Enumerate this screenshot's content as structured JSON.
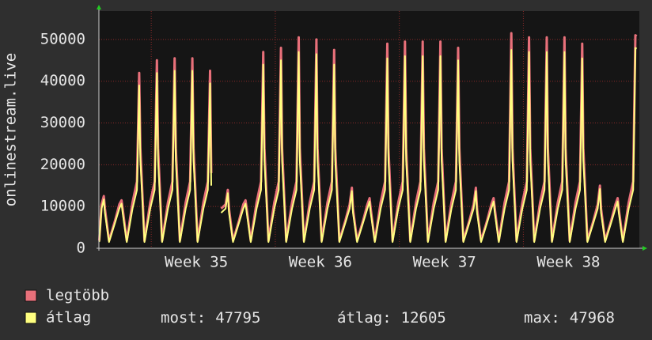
{
  "chart_data": {
    "type": "line",
    "ylabel": "onlinestream.live",
    "xlim": [
      0.6,
      31.1
    ],
    "xticks": [
      {
        "value": 6.1,
        "label": "Week 35"
      },
      {
        "value": 13.1,
        "label": "Week 36"
      },
      {
        "value": 20.1,
        "label": "Week 37"
      },
      {
        "value": 27.1,
        "label": "Week 38"
      }
    ],
    "ylim": [
      0,
      56800
    ],
    "yticks": [
      0,
      10000,
      20000,
      30000,
      40000,
      50000
    ],
    "grid": true,
    "x": [
      0.62,
      0.75,
      0.875,
      0.94,
      1.17,
      1.5,
      1.75,
      1.875,
      1.94,
      2.17,
      2.5,
      2.75,
      2.875,
      2.94,
      3.17,
      3.5,
      3.75,
      3.875,
      3.94,
      4.17,
      4.5,
      4.75,
      4.875,
      4.94,
      5.17,
      5.5,
      5.75,
      5.875,
      5.94,
      6.17,
      6.5,
      6.75,
      6.875,
      6.94,
      7.17,
      7.5,
      7.75,
      7.875,
      7.94,
      8.17,
      8.5,
      8.75,
      8.875,
      8.94,
      9.17,
      9.5,
      9.75,
      9.875,
      9.94,
      10.17,
      10.5,
      10.75,
      10.875,
      10.94,
      11.17,
      11.5,
      11.75,
      11.875,
      11.94,
      12.17,
      12.5,
      12.75,
      12.875,
      12.94,
      13.17,
      13.5,
      13.75,
      13.875,
      13.94,
      14.17,
      14.5,
      14.75,
      14.875,
      14.94,
      15.17,
      15.5,
      15.75,
      15.875,
      15.94,
      16.17,
      16.5,
      16.75,
      16.875,
      16.94,
      17.17,
      17.5,
      17.75,
      17.875,
      17.94,
      18.17,
      18.5,
      18.75,
      18.875,
      18.94,
      19.17,
      19.5,
      19.75,
      19.875,
      19.94,
      20.17,
      20.5,
      20.75,
      20.875,
      20.94,
      21.17,
      21.5,
      21.75,
      21.875,
      21.94,
      22.17,
      22.5,
      22.75,
      22.875,
      22.94,
      23.17,
      23.5,
      23.75,
      23.875,
      23.94,
      24.17,
      24.5,
      24.75,
      24.875,
      24.94,
      25.17,
      25.5,
      25.75,
      25.875,
      25.94,
      26.17,
      26.5,
      26.75,
      26.875,
      26.94,
      27.17,
      27.5,
      27.75,
      27.875,
      27.94,
      28.17,
      28.5,
      28.75,
      28.875,
      28.94,
      29.17,
      29.5,
      29.75,
      29.875,
      29.94,
      30.17,
      30.5,
      30.75,
      30.875,
      30.95
    ],
    "series": [
      {
        "name": "legtöbb",
        "color": "#e8707a",
        "values": [
          1800,
          10500,
          12500,
          9500,
          1800,
          6500,
          10500,
          11500,
          9500,
          1800,
          11000,
          16000,
          42000,
          24000,
          1800,
          11000,
          16000,
          45000,
          24000,
          1800,
          11000,
          16000,
          45500,
          24000,
          1800,
          11000,
          16000,
          45500,
          24000,
          1800,
          11000,
          16000,
          42500,
          18000,
          null,
          9500,
          10500,
          14000,
          9500,
          1800,
          6500,
          10500,
          11500,
          9500,
          1800,
          11000,
          16000,
          47000,
          24000,
          1800,
          11000,
          16000,
          48000,
          24000,
          1800,
          11000,
          16000,
          50500,
          24000,
          1800,
          11000,
          16000,
          50000,
          24000,
          1800,
          11000,
          16000,
          47500,
          24000,
          1800,
          6500,
          10500,
          14500,
          9500,
          1800,
          6500,
          10500,
          12000,
          9500,
          1800,
          11000,
          16000,
          49000,
          24000,
          1800,
          11000,
          16000,
          49500,
          24000,
          1800,
          11000,
          16000,
          49500,
          24000,
          1800,
          11000,
          16000,
          49500,
          24000,
          1800,
          11000,
          16000,
          48000,
          24000,
          1800,
          6500,
          10500,
          14500,
          9500,
          1800,
          6500,
          10500,
          12000,
          9500,
          1800,
          11000,
          16000,
          51500,
          24000,
          1800,
          11000,
          16000,
          50500,
          24000,
          1800,
          11000,
          16000,
          50500,
          24000,
          1800,
          11000,
          16000,
          50500,
          24000,
          1800,
          11000,
          16000,
          49000,
          24000,
          1800,
          6500,
          10500,
          15000,
          9500,
          1800,
          6500,
          10500,
          12000,
          9500,
          1800,
          11000,
          16000,
          51000,
          50800
        ]
      },
      {
        "name": "átlag",
        "color": "#ffff80",
        "values": [
          1500,
          9500,
          11700,
          8500,
          1500,
          6000,
          9500,
          10700,
          8500,
          1500,
          9500,
          14000,
          39000,
          21000,
          1500,
          9500,
          14000,
          42000,
          21000,
          1500,
          9500,
          14000,
          42500,
          21000,
          1500,
          9500,
          14000,
          42500,
          21000,
          1500,
          9500,
          14000,
          39500,
          15000,
          null,
          8500,
          9500,
          13200,
          8500,
          1500,
          6000,
          9500,
          10700,
          8500,
          1500,
          9500,
          14000,
          44000,
          21000,
          1500,
          9500,
          14000,
          45000,
          21000,
          1500,
          9500,
          14000,
          47000,
          21000,
          1500,
          9500,
          14000,
          46500,
          21000,
          1500,
          9500,
          14000,
          44000,
          21000,
          1500,
          6000,
          9500,
          13700,
          8500,
          1500,
          6000,
          9500,
          11200,
          8500,
          1500,
          9500,
          14000,
          45500,
          21000,
          1500,
          9500,
          14000,
          46000,
          21000,
          1500,
          9500,
          14000,
          46000,
          21000,
          1500,
          9500,
          14000,
          46000,
          21000,
          1500,
          9500,
          14000,
          45000,
          21000,
          1500,
          6000,
          9500,
          13700,
          8500,
          1500,
          6000,
          9500,
          11200,
          8500,
          1500,
          9500,
          14000,
          47500,
          21000,
          1500,
          9500,
          14000,
          47000,
          21000,
          1500,
          9500,
          14000,
          47000,
          21000,
          1500,
          9500,
          14000,
          47000,
          21000,
          1500,
          9500,
          14000,
          45500,
          21000,
          1500,
          6000,
          9500,
          14200,
          8500,
          1500,
          6000,
          9500,
          11200,
          8500,
          1500,
          9500,
          14000,
          47968,
          47795
        ]
      }
    ],
    "stats": [
      {
        "label": "most:",
        "value": 47795
      },
      {
        "label": "átlag:",
        "value": 12605
      },
      {
        "label": "max:",
        "value": 47968
      }
    ]
  }
}
